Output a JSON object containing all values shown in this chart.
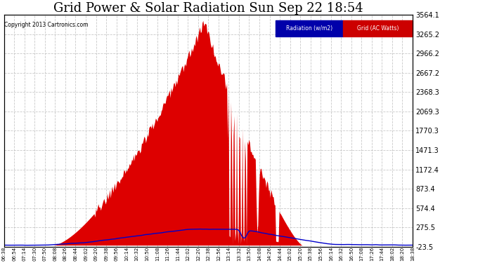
{
  "title": "Grid Power & Solar Radiation Sun Sep 22 18:54",
  "copyright": "Copyright 2013 Cartronics.com",
  "legend_labels": [
    "Radiation (w/m2)",
    "Grid (AC Watts)"
  ],
  "y_right_ticks": [
    3564.1,
    3265.2,
    2966.2,
    2667.2,
    2368.3,
    2069.3,
    1770.3,
    1471.3,
    1172.4,
    873.4,
    574.4,
    275.5,
    -23.5
  ],
  "y_min": -23.5,
  "y_max": 3564.1,
  "bg_color": "#ffffff",
  "plot_bg": "#ffffff",
  "grid_color": "#bbbbbb",
  "fill_color": "#dd0000",
  "line_color": "#0000cc",
  "title_fontsize": 13,
  "x_label_rotation": 90,
  "x_tick_labels": [
    "06:38",
    "06:54",
    "07:14",
    "07:30",
    "07:50",
    "08:08",
    "08:26",
    "08:44",
    "09:02",
    "09:20",
    "09:38",
    "09:56",
    "10:14",
    "10:32",
    "10:50",
    "11:08",
    "11:26",
    "11:44",
    "12:02",
    "12:20",
    "12:38",
    "12:56",
    "13:14",
    "13:32",
    "13:50",
    "14:08",
    "14:26",
    "14:44",
    "15:02",
    "15:20",
    "15:38",
    "15:56",
    "16:14",
    "16:32",
    "16:50",
    "17:08",
    "17:26",
    "17:44",
    "18:02",
    "18:20",
    "18:38"
  ]
}
